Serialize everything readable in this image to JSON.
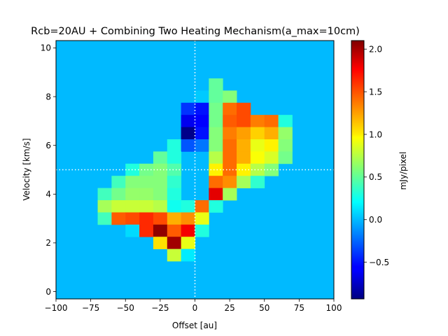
{
  "chart_data": {
    "type": "heatmap",
    "title": "Rcb=20AU + Combining Two Heating Mechanism(a_max=10cm)",
    "xlabel": "Offset [au]",
    "ylabel": "Velocity [km/s]",
    "colorbar_label": "mJy/pixel",
    "xlim": [
      -100,
      100
    ],
    "ylim": [
      -0.3,
      10.3
    ],
    "clim": [
      -0.93,
      2.1
    ],
    "colormap": "jet",
    "background_value": 0.0,
    "x_ticks": [
      -100,
      -75,
      -50,
      -25,
      0,
      25,
      50,
      75,
      100
    ],
    "x_tick_labels": [
      "−100",
      "−75",
      "−50",
      "−25",
      "0",
      "25",
      "50",
      "75",
      "100"
    ],
    "y_ticks": [
      0,
      2,
      4,
      6,
      8,
      10
    ],
    "y_tick_labels": [
      "0",
      "2",
      "4",
      "6",
      "8",
      "10"
    ],
    "cbar_ticks": [
      -0.5,
      0.0,
      0.5,
      1.0,
      1.5,
      2.0
    ],
    "cbar_tick_labels": [
      "−0.5",
      "0.0",
      "0.5",
      "1.0",
      "1.5",
      "2.0"
    ],
    "reference_lines": {
      "x": 0,
      "y": 5.0,
      "style": "dotted",
      "color": "#ffffff"
    },
    "pixel_size": {
      "dx": 10,
      "dy": 0.5
    },
    "cells": [
      {
        "x": 15,
        "y": 8.5,
        "v": 0.5
      },
      {
        "x": 5,
        "y": 8.0,
        "v": 0.05
      },
      {
        "x": 15,
        "y": 8.0,
        "v": 0.5
      },
      {
        "x": 25,
        "y": 8.0,
        "v": 0.6
      },
      {
        "x": -5,
        "y": 7.5,
        "v": -0.4
      },
      {
        "x": 5,
        "y": 7.5,
        "v": -0.5
      },
      {
        "x": 15,
        "y": 7.5,
        "v": 0.55
      },
      {
        "x": 25,
        "y": 7.5,
        "v": 1.4
      },
      {
        "x": 35,
        "y": 7.5,
        "v": 1.5
      },
      {
        "x": -5,
        "y": 7.0,
        "v": -0.6
      },
      {
        "x": 5,
        "y": 7.0,
        "v": -0.55
      },
      {
        "x": 15,
        "y": 7.0,
        "v": 0.55
      },
      {
        "x": 25,
        "y": 7.0,
        "v": 1.45
      },
      {
        "x": 35,
        "y": 7.0,
        "v": 1.5
      },
      {
        "x": 45,
        "y": 7.0,
        "v": 1.35
      },
      {
        "x": 55,
        "y": 7.0,
        "v": 1.4
      },
      {
        "x": 65,
        "y": 7.0,
        "v": 0.3
      },
      {
        "x": -5,
        "y": 6.5,
        "v": -0.9
      },
      {
        "x": 5,
        "y": 6.5,
        "v": -0.5
      },
      {
        "x": 15,
        "y": 6.5,
        "v": 0.6
      },
      {
        "x": 25,
        "y": 6.5,
        "v": 1.35
      },
      {
        "x": 35,
        "y": 6.5,
        "v": 1.25
      },
      {
        "x": 45,
        "y": 6.5,
        "v": 1.1
      },
      {
        "x": 55,
        "y": 6.5,
        "v": 1.2
      },
      {
        "x": 65,
        "y": 6.5,
        "v": 0.65
      },
      {
        "x": -15,
        "y": 6.0,
        "v": 0.3
      },
      {
        "x": -5,
        "y": 6.0,
        "v": -0.3
      },
      {
        "x": 5,
        "y": 6.0,
        "v": -0.2
      },
      {
        "x": 15,
        "y": 6.0,
        "v": 0.6
      },
      {
        "x": 25,
        "y": 6.0,
        "v": 1.4
      },
      {
        "x": 35,
        "y": 6.0,
        "v": 1.2
      },
      {
        "x": 45,
        "y": 6.0,
        "v": 0.9
      },
      {
        "x": 55,
        "y": 6.0,
        "v": 1.0
      },
      {
        "x": 65,
        "y": 6.0,
        "v": 0.6
      },
      {
        "x": -25,
        "y": 5.5,
        "v": 0.5
      },
      {
        "x": -15,
        "y": 5.5,
        "v": 0.3
      },
      {
        "x": 15,
        "y": 5.5,
        "v": 0.75
      },
      {
        "x": 25,
        "y": 5.5,
        "v": 1.4
      },
      {
        "x": 35,
        "y": 5.5,
        "v": 1.2
      },
      {
        "x": 45,
        "y": 5.5,
        "v": 0.95
      },
      {
        "x": 55,
        "y": 5.5,
        "v": 0.85
      },
      {
        "x": 65,
        "y": 5.5,
        "v": 0.55
      },
      {
        "x": -45,
        "y": 5.0,
        "v": 0.3
      },
      {
        "x": -35,
        "y": 5.0,
        "v": 0.55
      },
      {
        "x": -25,
        "y": 5.0,
        "v": 0.6
      },
      {
        "x": -15,
        "y": 5.0,
        "v": 0.45
      },
      {
        "x": 15,
        "y": 5.0,
        "v": 1.0
      },
      {
        "x": 25,
        "y": 5.0,
        "v": 1.4
      },
      {
        "x": 35,
        "y": 5.0,
        "v": 1.0
      },
      {
        "x": 45,
        "y": 5.0,
        "v": 0.75
      },
      {
        "x": 55,
        "y": 5.0,
        "v": 0.6
      },
      {
        "x": -55,
        "y": 4.5,
        "v": 0.4
      },
      {
        "x": -45,
        "y": 4.5,
        "v": 0.6
      },
      {
        "x": -35,
        "y": 4.5,
        "v": 0.6
      },
      {
        "x": -25,
        "y": 4.5,
        "v": 0.6
      },
      {
        "x": -15,
        "y": 4.5,
        "v": 0.35
      },
      {
        "x": 15,
        "y": 4.5,
        "v": 1.4
      },
      {
        "x": 25,
        "y": 4.5,
        "v": 1.3
      },
      {
        "x": 35,
        "y": 4.5,
        "v": 0.7
      },
      {
        "x": 45,
        "y": 4.5,
        "v": 0.35
      },
      {
        "x": -65,
        "y": 4.0,
        "v": 0.4
      },
      {
        "x": -55,
        "y": 4.0,
        "v": 0.55
      },
      {
        "x": -45,
        "y": 4.0,
        "v": 0.65
      },
      {
        "x": -35,
        "y": 4.0,
        "v": 0.65
      },
      {
        "x": -25,
        "y": 4.0,
        "v": 0.6
      },
      {
        "x": -15,
        "y": 4.0,
        "v": 0.3
      },
      {
        "x": 15,
        "y": 4.0,
        "v": 1.8
      },
      {
        "x": 25,
        "y": 4.0,
        "v": 0.7
      },
      {
        "x": -65,
        "y": 3.5,
        "v": 0.7
      },
      {
        "x": -55,
        "y": 3.5,
        "v": 0.8
      },
      {
        "x": -45,
        "y": 3.5,
        "v": 0.8
      },
      {
        "x": -35,
        "y": 3.5,
        "v": 0.8
      },
      {
        "x": -25,
        "y": 3.5,
        "v": 0.75
      },
      {
        "x": -15,
        "y": 3.5,
        "v": 0.25
      },
      {
        "x": -5,
        "y": 3.5,
        "v": 0.3
      },
      {
        "x": 5,
        "y": 3.5,
        "v": 1.4
      },
      {
        "x": 15,
        "y": 3.5,
        "v": 0.3
      },
      {
        "x": -65,
        "y": 3.0,
        "v": 0.4
      },
      {
        "x": -55,
        "y": 3.0,
        "v": 1.45
      },
      {
        "x": -45,
        "y": 3.0,
        "v": 1.5
      },
      {
        "x": -35,
        "y": 3.0,
        "v": 1.6
      },
      {
        "x": -25,
        "y": 3.0,
        "v": 1.5
      },
      {
        "x": -15,
        "y": 3.0,
        "v": 1.2
      },
      {
        "x": -5,
        "y": 3.0,
        "v": 1.3
      },
      {
        "x": 5,
        "y": 3.0,
        "v": 0.9
      },
      {
        "x": -45,
        "y": 2.5,
        "v": 0.1
      },
      {
        "x": -35,
        "y": 2.5,
        "v": 1.6
      },
      {
        "x": -25,
        "y": 2.5,
        "v": 2.05
      },
      {
        "x": -15,
        "y": 2.5,
        "v": 1.45
      },
      {
        "x": -5,
        "y": 2.5,
        "v": 1.75
      },
      {
        "x": 5,
        "y": 2.5,
        "v": 0.3
      },
      {
        "x": -25,
        "y": 2.0,
        "v": 1.05
      },
      {
        "x": -15,
        "y": 2.0,
        "v": 2.0
      },
      {
        "x": -5,
        "y": 2.0,
        "v": 0.9
      },
      {
        "x": -15,
        "y": 1.5,
        "v": 0.8
      },
      {
        "x": -5,
        "y": 1.5,
        "v": 0.15
      }
    ]
  }
}
